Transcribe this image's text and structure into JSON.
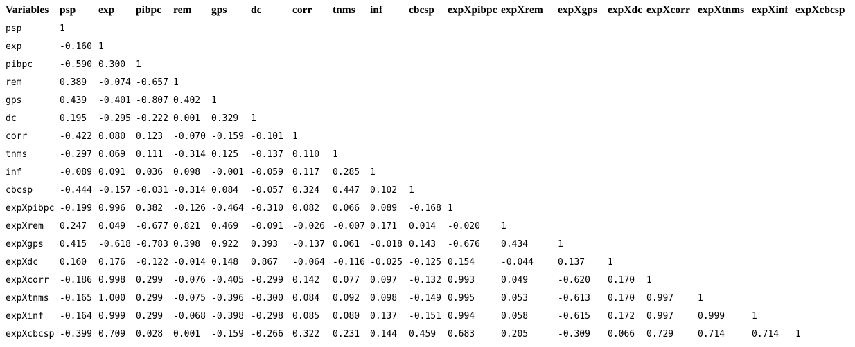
{
  "page": {
    "background_color": "#ffffff",
    "text_color": "#000000",
    "description": "Correlation matrix table"
  },
  "table": {
    "header": [
      "Variables",
      "psp",
      "exp",
      "pibpc",
      "rem",
      "gps",
      "dc",
      "corr",
      "tnms",
      "inf",
      "cbcsp",
      "expXpibpc",
      "expXrem",
      "expXgps",
      "expXdc",
      "expXcorr",
      "expXtnms",
      "expXinf",
      "expXcbcsp"
    ],
    "rows": [
      {
        "label": "psp",
        "values": [
          "1"
        ]
      },
      {
        "label": "exp",
        "values": [
          "-0.160",
          "1"
        ]
      },
      {
        "label": "pibpc",
        "values": [
          "-0.590",
          "0.300",
          "1"
        ]
      },
      {
        "label": "rem",
        "values": [
          "0.389",
          "-0.074",
          "-0.657",
          "1"
        ]
      },
      {
        "label": "gps",
        "values": [
          "0.439",
          "-0.401",
          "-0.807",
          "0.402",
          "1"
        ]
      },
      {
        "label": "dc",
        "values": [
          "0.195",
          "-0.295",
          "-0.222",
          "0.001",
          "0.329",
          "1"
        ]
      },
      {
        "label": "corr",
        "values": [
          "-0.422",
          "0.080",
          "0.123",
          "-0.070",
          "-0.159",
          "-0.101",
          "1"
        ]
      },
      {
        "label": "tnms",
        "values": [
          "-0.297",
          "0.069",
          "0.111",
          "-0.314",
          "0.125",
          "-0.137",
          "0.110",
          "1"
        ]
      },
      {
        "label": "inf",
        "values": [
          "-0.089",
          "0.091",
          "0.036",
          "0.098",
          "-0.001",
          "-0.059",
          "0.117",
          "0.285",
          "1"
        ]
      },
      {
        "label": "cbcsp",
        "values": [
          "-0.444",
          "-0.157",
          "-0.031",
          "-0.314",
          "0.084",
          "-0.057",
          "0.324",
          "0.447",
          "0.102",
          "1"
        ]
      },
      {
        "label": "expXpibpc",
        "values": [
          "-0.199",
          "0.996",
          "0.382",
          "-0.126",
          "-0.464",
          "-0.310",
          "0.082",
          "0.066",
          "0.089",
          "-0.168",
          "1"
        ]
      },
      {
        "label": "expXrem",
        "values": [
          "0.247",
          "0.049",
          "-0.677",
          "0.821",
          "0.469",
          "-0.091",
          "-0.026",
          "-0.007",
          "0.171",
          "0.014",
          "-0.020",
          "1"
        ]
      },
      {
        "label": "expXgps",
        "values": [
          "0.415",
          "-0.618",
          "-0.783",
          "0.398",
          "0.922",
          "0.393",
          "-0.137",
          "0.061",
          "-0.018",
          "0.143",
          "-0.676",
          "0.434",
          "1"
        ]
      },
      {
        "label": "expXdc",
        "values": [
          "0.160",
          "0.176",
          "-0.122",
          "-0.014",
          "0.148",
          "0.867",
          "-0.064",
          "-0.116",
          "-0.025",
          "-0.125",
          "0.154",
          "-0.044",
          "0.137",
          "1"
        ]
      },
      {
        "label": "expXcorr",
        "values": [
          "-0.186",
          "0.998",
          "0.299",
          "-0.076",
          "-0.405",
          "-0.299",
          "0.142",
          "0.077",
          "0.097",
          "-0.132",
          "0.993",
          "0.049",
          "-0.620",
          "0.170",
          "1"
        ]
      },
      {
        "label": "expXtnms",
        "values": [
          "-0.165",
          "1.000",
          "0.299",
          "-0.075",
          "-0.396",
          "-0.300",
          "0.084",
          "0.092",
          "0.098",
          "-0.149",
          "0.995",
          "0.053",
          "-0.613",
          "0.170",
          "0.997",
          "1"
        ]
      },
      {
        "label": "expXinf",
        "values": [
          "-0.164",
          "0.999",
          "0.299",
          "-0.068",
          "-0.398",
          "-0.298",
          "0.085",
          "0.080",
          "0.137",
          "-0.151",
          "0.994",
          "0.058",
          "-0.615",
          "0.172",
          "0.997",
          "0.999",
          "1"
        ]
      },
      {
        "label": "expXcbcsp",
        "values": [
          "-0.399",
          "0.709",
          "0.028",
          "0.001",
          "-0.159",
          "-0.266",
          "0.322",
          "0.231",
          "0.144",
          "0.459",
          "0.683",
          "0.205",
          "-0.309",
          "0.066",
          "0.729",
          "0.714",
          "0.714",
          "1"
        ]
      }
    ]
  }
}
